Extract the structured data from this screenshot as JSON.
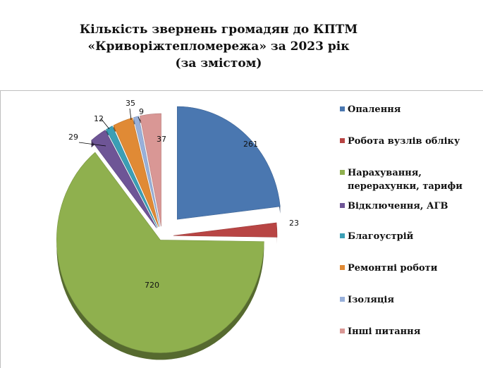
{
  "chart_data": {
    "type": "pie",
    "title_lines": [
      "Кількість звернень громадян до КПТМ",
      "«Криворіжтепломережа» за 2023 рік",
      "(за змістом)"
    ],
    "categories": [
      "Опалення",
      "Робота вузлів обліку",
      "Нарахування,\nперерахунки, тарифи",
      "Відключення, АГВ",
      "Благоустрій",
      "Ремонтні роботи",
      "Ізоляція",
      "Інші питання"
    ],
    "values": [
      261,
      23,
      720,
      29,
      12,
      35,
      9,
      37
    ],
    "value_labels": [
      "261",
      "23",
      "720",
      "29",
      "12",
      "35",
      "9",
      "37"
    ],
    "colors": [
      "#4a77b0",
      "#b84544",
      "#8fb04e",
      "#6e5596",
      "#3b9fb5",
      "#e08a35",
      "#98b0da",
      "#d99795"
    ],
    "legend_position": "right",
    "exploded": true
  }
}
